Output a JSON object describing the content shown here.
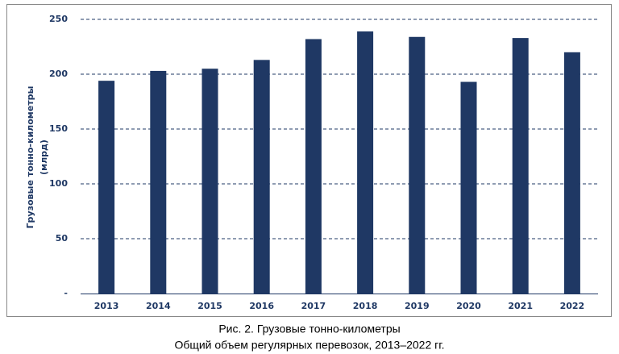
{
  "chart_data": {
    "type": "bar",
    "ylabel": [
      "Грузовые тонно-километры",
      "(млрд)"
    ],
    "caption": [
      "Рис. 2. Грузовые тонно-километры",
      "Общий объем регулярных перевозок, 2013–2022 гг."
    ],
    "categories": [
      "2013",
      "2014",
      "2015",
      "2016",
      "2017",
      "2018",
      "2019",
      "2020",
      "2021",
      "2022"
    ],
    "values": [
      194,
      203,
      205,
      213,
      232,
      239,
      234,
      193,
      233,
      220
    ],
    "color": "#1f3864",
    "ylim": [
      0,
      250
    ],
    "yticks": [
      {
        "value": 0,
        "label": "-"
      },
      50,
      100,
      150,
      200,
      250
    ],
    "grid": true
  }
}
